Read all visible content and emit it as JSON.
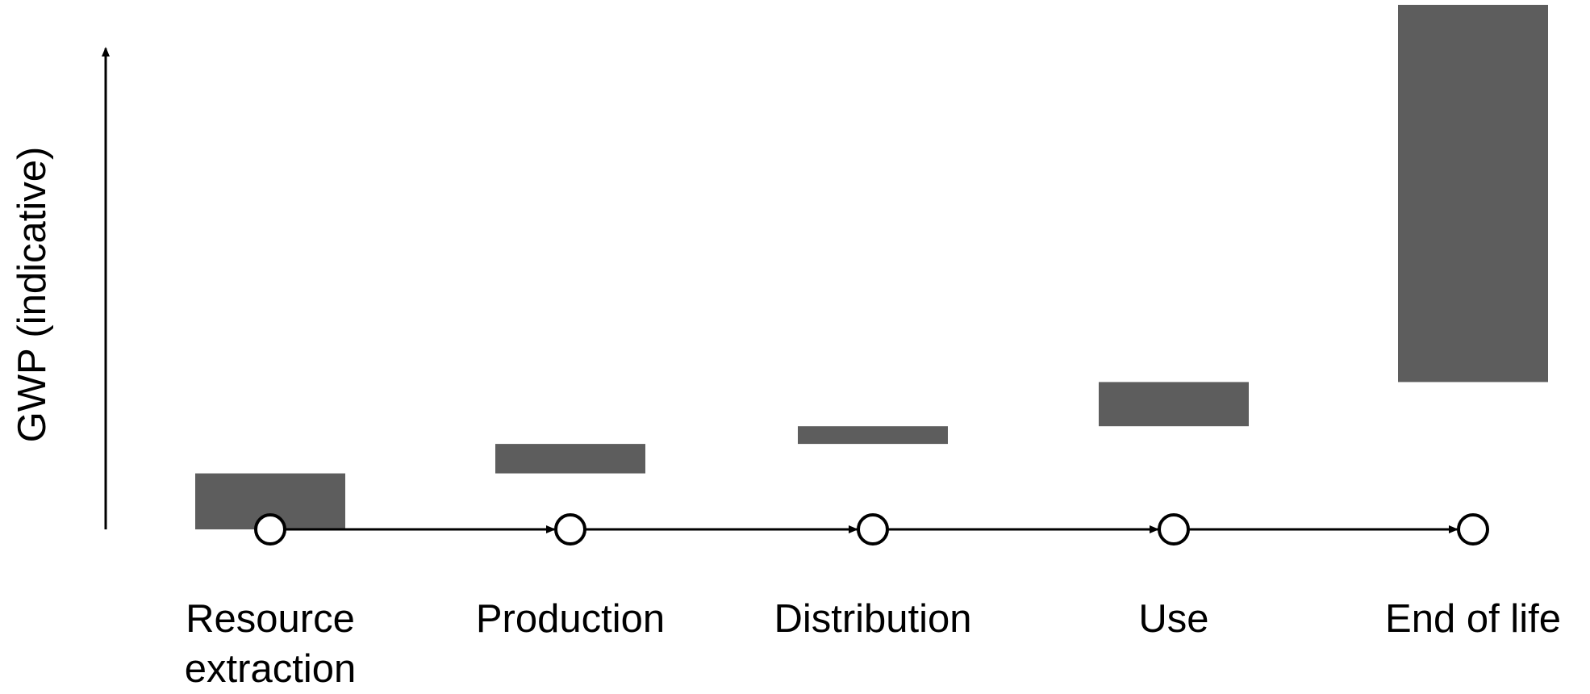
{
  "chart_data": {
    "type": "bar",
    "subtype": "waterfall",
    "ylabel": "GWP (indicative)",
    "xlabel": "",
    "title": "",
    "categories": [
      "Resource extraction",
      "Production",
      "Distribution",
      "Use",
      "End of life"
    ],
    "category_lines": [
      [
        "Resource",
        "extraction"
      ],
      [
        "Production"
      ],
      [
        "Distribution"
      ],
      [
        "Use"
      ],
      [
        "End of life"
      ]
    ],
    "series": [
      {
        "values": [
          9.5,
          5,
          3,
          7.5,
          64
        ]
      }
    ],
    "cumulative_end": [
      9.5,
      14.5,
      17.5,
      25,
      89
    ],
    "ylim": [
      0,
      89
    ],
    "y_ticks_shown": false,
    "grid": false,
    "bar_color": "#5d5d5d",
    "axis_color": "#000000"
  }
}
